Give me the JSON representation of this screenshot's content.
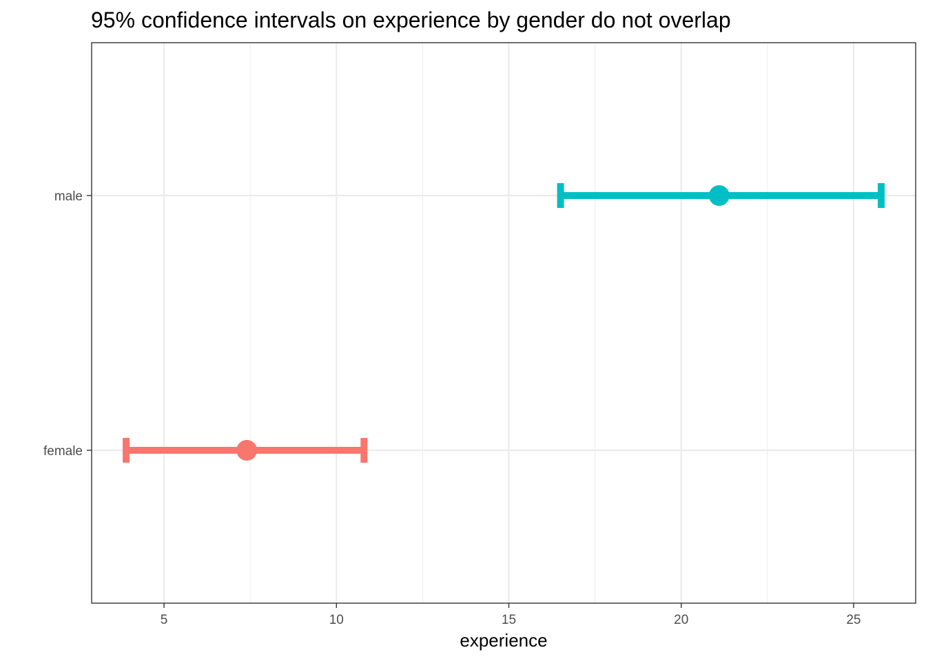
{
  "chart_data": {
    "type": "errorbar",
    "title": "95% confidence intervals on experience by gender do not overlap",
    "xlabel": "experience",
    "ylabel": "",
    "xlim": [
      2.9,
      26.8
    ],
    "x_ticks": [
      5,
      10,
      15,
      20,
      25
    ],
    "x_tick_labels": [
      "5",
      "10",
      "15",
      "20",
      "25"
    ],
    "x_minor_ticks": [
      7.5,
      12.5,
      17.5,
      22.5
    ],
    "categories": [
      "female",
      "male"
    ],
    "grid": true,
    "legend": "none",
    "series": [
      {
        "category": "female",
        "estimate": 7.4,
        "lower": 3.9,
        "upper": 10.8,
        "color": "#F8766D"
      },
      {
        "category": "male",
        "estimate": 21.1,
        "lower": 16.5,
        "upper": 25.8,
        "color": "#00BFC4"
      }
    ],
    "colors": {
      "panel_border": "#333333",
      "grid_major": "#EBEBEB",
      "grid_minor": "#F0F0F0",
      "tick": "#333333"
    }
  }
}
